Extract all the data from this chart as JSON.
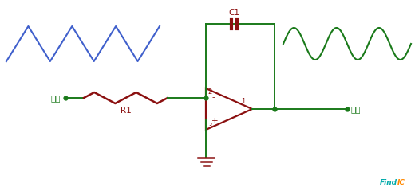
{
  "bg_color": "#ffffff",
  "wire_color": "#1a7a1a",
  "comp_color": "#8B1010",
  "blue": "#4060CC",
  "sig_green": "#1a7a1a",
  "wm_teal": "#00AAAA",
  "wm_orange": "#FF8800",
  "input_label": "输入",
  "output_label": "输出",
  "r1_label": "R1",
  "c1_label": "C1",
  "node2": "2",
  "node3": "3",
  "node1": "1",
  "minus": "-",
  "plus": "+",
  "wm1": "FindIC",
  "figw": 5.2,
  "figh": 2.4,
  "dpi": 100
}
